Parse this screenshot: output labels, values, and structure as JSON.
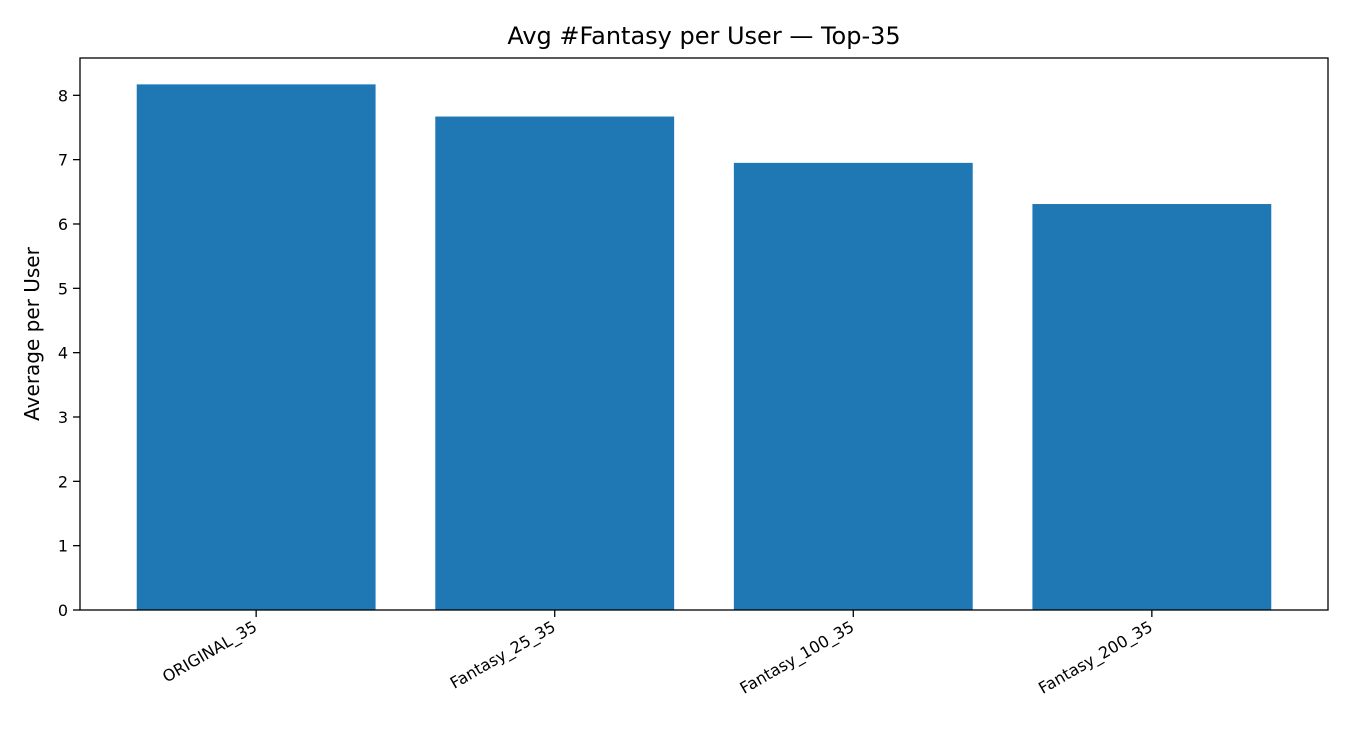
{
  "chart_data": {
    "type": "bar",
    "title": "Avg #Fantasy per User — Top-35",
    "xlabel": "",
    "ylabel": "Average per User",
    "categories": [
      "ORIGINAL_35",
      "Fantasy_25_35",
      "Fantasy_100_35",
      "Fantasy_200_35"
    ],
    "values": [
      8.17,
      7.67,
      6.95,
      6.31
    ],
    "ylim": [
      0,
      8.58
    ],
    "yticks": [
      0,
      1,
      2,
      3,
      4,
      5,
      6,
      7,
      8
    ],
    "bar_color": "#1f77b4",
    "grid": false,
    "legend": "none"
  }
}
